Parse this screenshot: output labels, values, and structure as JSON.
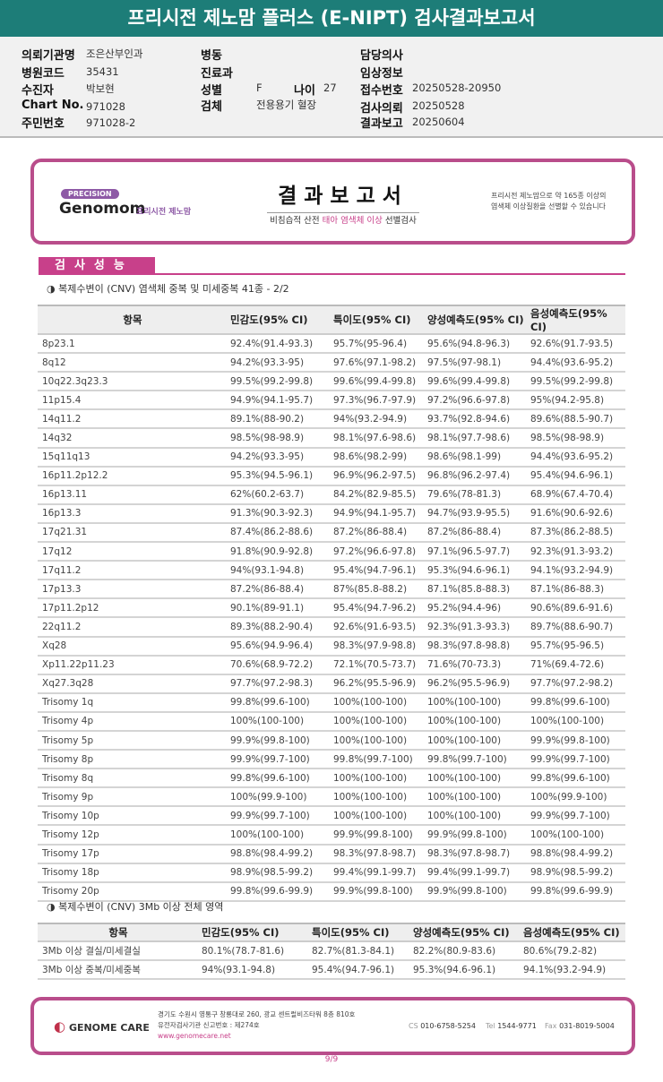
{
  "title": "프리시전 제노맘 플러스 (E-NIPT) 검사결과보고서",
  "info": {
    "institution_label": "의뢰기관명",
    "institution": "조은산부인과",
    "hospital_code_label": "병원코드",
    "hospital_code": "35431",
    "patient_label": "수진자",
    "patient": "박보현",
    "chart_no_label": "Chart No.",
    "chart_no": "971028",
    "resident_no_label": "주민번호",
    "resident_no": "971028-2",
    "ward_label": "병동",
    "dept_label": "진료과",
    "sex_label": "성별",
    "sex": "F",
    "age_label": "나이",
    "age": "27",
    "specimen_label": "검체",
    "specimen": "전용용기 혈장",
    "doctor_label": "담당의사",
    "clinical_label": "임상정보",
    "receipt_label": "접수번호",
    "receipt": "20250528-20950",
    "request_label": "검사의뢰",
    "request": "20250528",
    "report_label": "결과보고",
    "report": "20250604"
  },
  "header_card": {
    "precision": "PRECISION",
    "brand": "Genomom",
    "brand_kr": "프리시전 제노맘",
    "title": "결과보고서",
    "subtitle_pre": "비침습적 산전 ",
    "subtitle_hl": "태아 염색체 이상",
    "subtitle_post": " 선별검사",
    "note_line1": "프리시전 제노맘으로 약 165종 이상의",
    "note_line2": "염색체 이상질환을 선별할 수 있습니다"
  },
  "section_title": "검사성능",
  "table1": {
    "caption": "◑ 복제수변이 (CNV) 염색체 중복 및 미세중복 41종 - 2/2",
    "headers": [
      "항목",
      "민감도(95% CI)",
      "특이도(95% CI)",
      "양성예측도(95% CI)",
      "음성예측도(95% CI)"
    ],
    "rows": [
      [
        "8p23.1",
        "92.4%(91.4-93.3)",
        "95.7%(95-96.4)",
        "95.6%(94.8-96.3)",
        "92.6%(91.7-93.5)"
      ],
      [
        "8q12",
        "94.2%(93.3-95)",
        "97.6%(97.1-98.2)",
        "97.5%(97-98.1)",
        "94.4%(93.6-95.2)"
      ],
      [
        "10q22.3q23.3",
        "99.5%(99.2-99.8)",
        "99.6%(99.4-99.8)",
        "99.6%(99.4-99.8)",
        "99.5%(99.2-99.8)"
      ],
      [
        "11p15.4",
        "94.9%(94.1-95.7)",
        "97.3%(96.7-97.9)",
        "97.2%(96.6-97.8)",
        "95%(94.2-95.8)"
      ],
      [
        "14q11.2",
        "89.1%(88-90.2)",
        "94%(93.2-94.9)",
        "93.7%(92.8-94.6)",
        "89.6%(88.5-90.7)"
      ],
      [
        "14q32",
        "98.5%(98-98.9)",
        "98.1%(97.6-98.6)",
        "98.1%(97.7-98.6)",
        "98.5%(98-98.9)"
      ],
      [
        "15q11q13",
        "94.2%(93.3-95)",
        "98.6%(98.2-99)",
        "98.6%(98.1-99)",
        "94.4%(93.6-95.2)"
      ],
      [
        "16p11.2p12.2",
        "95.3%(94.5-96.1)",
        "96.9%(96.2-97.5)",
        "96.8%(96.2-97.4)",
        "95.4%(94.6-96.1)"
      ],
      [
        "16p13.11",
        "62%(60.2-63.7)",
        "84.2%(82.9-85.5)",
        "79.6%(78-81.3)",
        "68.9%(67.4-70.4)"
      ],
      [
        "16p13.3",
        "91.3%(90.3-92.3)",
        "94.9%(94.1-95.7)",
        "94.7%(93.9-95.5)",
        "91.6%(90.6-92.6)"
      ],
      [
        "17q21.31",
        "87.4%(86.2-88.6)",
        "87.2%(86-88.4)",
        "87.2%(86-88.4)",
        "87.3%(86.2-88.5)"
      ],
      [
        "17q12",
        "91.8%(90.9-92.8)",
        "97.2%(96.6-97.8)",
        "97.1%(96.5-97.7)",
        "92.3%(91.3-93.2)"
      ],
      [
        "17q11.2",
        "94%(93.1-94.8)",
        "95.4%(94.7-96.1)",
        "95.3%(94.6-96.1)",
        "94.1%(93.2-94.9)"
      ],
      [
        "17p13.3",
        "87.2%(86-88.4)",
        "87%(85.8-88.2)",
        "87.1%(85.8-88.3)",
        "87.1%(86-88.3)"
      ],
      [
        "17p11.2p12",
        "90.1%(89-91.1)",
        "95.4%(94.7-96.2)",
        "95.2%(94.4-96)",
        "90.6%(89.6-91.6)"
      ],
      [
        "22q11.2",
        "89.3%(88.2-90.4)",
        "92.6%(91.6-93.5)",
        "92.3%(91.3-93.3)",
        "89.7%(88.6-90.7)"
      ],
      [
        "Xq28",
        "95.6%(94.9-96.4)",
        "98.3%(97.9-98.8)",
        "98.3%(97.8-98.8)",
        "95.7%(95-96.5)"
      ],
      [
        "Xp11.22p11.23",
        "70.6%(68.9-72.2)",
        "72.1%(70.5-73.7)",
        "71.6%(70-73.3)",
        "71%(69.4-72.6)"
      ],
      [
        "Xq27.3q28",
        "97.7%(97.2-98.3)",
        "96.2%(95.5-96.9)",
        "96.2%(95.5-96.9)",
        "97.7%(97.2-98.2)"
      ],
      [
        "Trisomy 1q",
        "99.8%(99.6-100)",
        "100%(100-100)",
        "100%(100-100)",
        "99.8%(99.6-100)"
      ],
      [
        "Trisomy 4p",
        "100%(100-100)",
        "100%(100-100)",
        "100%(100-100)",
        "100%(100-100)"
      ],
      [
        "Trisomy 5p",
        "99.9%(99.8-100)",
        "100%(100-100)",
        "100%(100-100)",
        "99.9%(99.8-100)"
      ],
      [
        "Trisomy 8p",
        "99.9%(99.7-100)",
        "99.8%(99.7-100)",
        "99.8%(99.7-100)",
        "99.9%(99.7-100)"
      ],
      [
        "Trisomy 8q",
        "99.8%(99.6-100)",
        "100%(100-100)",
        "100%(100-100)",
        "99.8%(99.6-100)"
      ],
      [
        "Trisomy 9p",
        "100%(99.9-100)",
        "100%(100-100)",
        "100%(100-100)",
        "100%(99.9-100)"
      ],
      [
        "Trisomy 10p",
        "99.9%(99.7-100)",
        "100%(100-100)",
        "100%(100-100)",
        "99.9%(99.7-100)"
      ],
      [
        "Trisomy 12p",
        "100%(100-100)",
        "99.9%(99.8-100)",
        "99.9%(99.8-100)",
        "100%(100-100)"
      ],
      [
        "Trisomy 17p",
        "98.8%(98.4-99.2)",
        "98.3%(97.8-98.7)",
        "98.3%(97.8-98.7)",
        "98.8%(98.4-99.2)"
      ],
      [
        "Trisomy 18p",
        "98.9%(98.5-99.2)",
        "99.4%(99.1-99.7)",
        "99.4%(99.1-99.7)",
        "98.9%(98.5-99.2)"
      ],
      [
        "Trisomy 20p",
        "99.8%(99.6-99.9)",
        "99.9%(99.8-100)",
        "99.9%(99.8-100)",
        "99.8%(99.6-99.9)"
      ]
    ]
  },
  "table2": {
    "caption": "◑ 복제수변이 (CNV) 3Mb 이상 전체 영역",
    "headers": [
      "항목",
      "민감도(95% CI)",
      "특이도(95% CI)",
      "양성예측도(95% CI)",
      "음성예측도(95% CI)"
    ],
    "rows": [
      [
        "3Mb 이상 결실/미세결실",
        "80.1%(78.7-81.6)",
        "82.7%(81.3-84.1)",
        "82.2%(80.9-83.6)",
        "80.6%(79.2-82)"
      ],
      [
        "3Mb 이상 중복/미세중복",
        "94%(93.1-94.8)",
        "95.4%(94.7-96.1)",
        "95.3%(94.6-96.1)",
        "94.1%(93.2-94.9)"
      ]
    ]
  },
  "footer": {
    "logo": "GENOME CARE",
    "address": "경기도 수원시 영통구 창룡대로 260, 광교 센트럴비즈타워 8층 810호",
    "registration": "유전자검사기관 신고번호 : 제274호",
    "website": "www.genomecare.net",
    "cs_label": "CS",
    "cs": "010-6758-5254",
    "tel_label": "Tel",
    "tel": "1544-9771",
    "fax_label": "Fax",
    "fax": "031-8019-5004"
  },
  "page_number": "9/9",
  "colors": {
    "title_bar": "#1d7d78",
    "accent": "#c8408a",
    "card_border": "#b94d8b"
  }
}
